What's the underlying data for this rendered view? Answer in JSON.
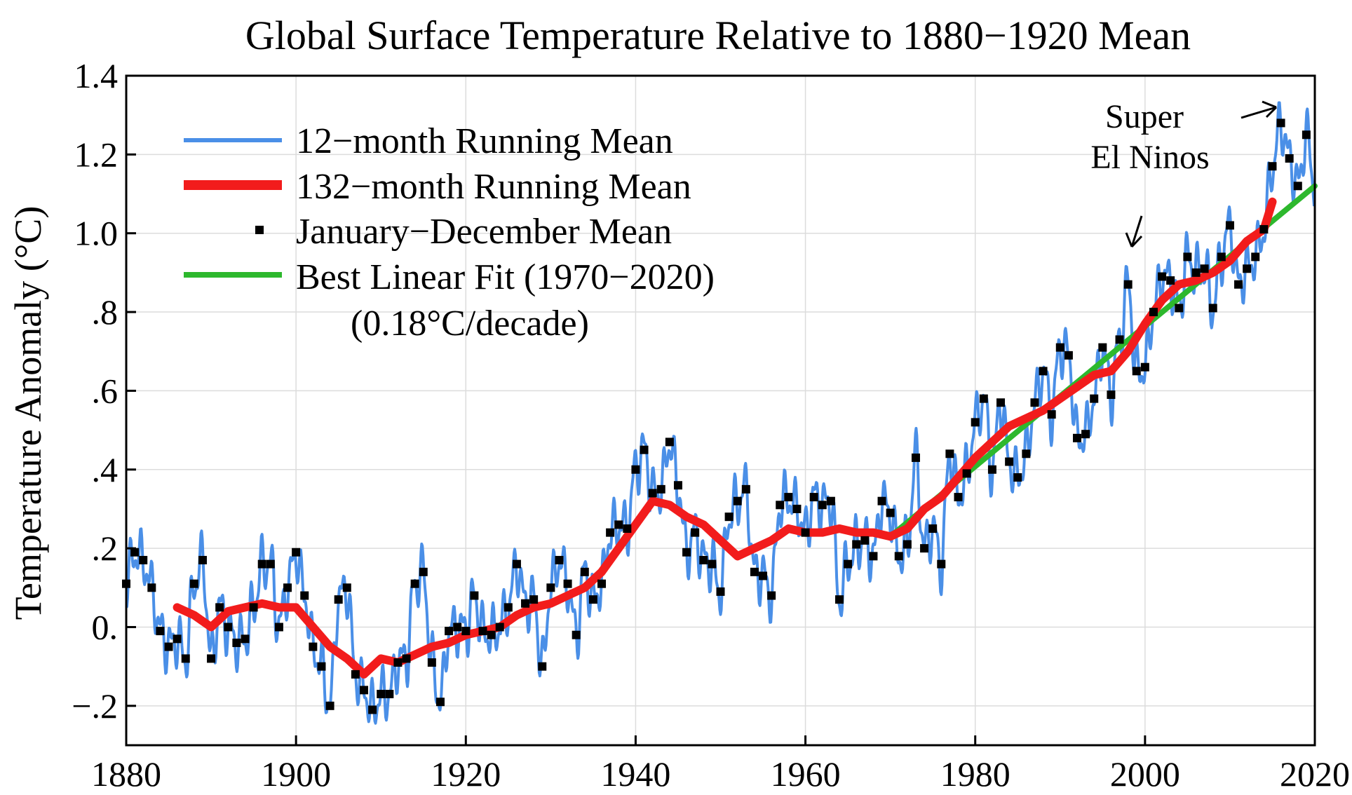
{
  "chart_data": {
    "type": "line",
    "title": "Global Surface Temperature Relative to 1880−1920 Mean",
    "xlabel": "",
    "ylabel": "Temperature Anomaly (°C)",
    "xlim": [
      1880,
      2020
    ],
    "ylim": [
      -0.3,
      1.4
    ],
    "x_ticks": [
      1880,
      1900,
      1920,
      1940,
      1960,
      1980,
      2000,
      2020
    ],
    "x_tick_labels": [
      "1880",
      "1900",
      "1920",
      "1940",
      "1960",
      "1980",
      "2000",
      "2020"
    ],
    "y_ticks": [
      -0.2,
      0.0,
      0.2,
      0.4,
      0.6,
      0.8,
      1.0,
      1.2,
      1.4
    ],
    "y_tick_labels": [
      "−.2",
      "0.",
      ".2",
      ".4",
      ".6",
      ".8",
      "1.0",
      "1.2",
      "1.4"
    ],
    "grid": true,
    "legend_position": "top-left",
    "legend": {
      "running12": "12−month Running Mean",
      "running132": "132−month Running Mean",
      "annual": "January−December Mean",
      "fit": "Best Linear Fit (1970−2020)",
      "fit_note": "(0.18°C/decade)"
    },
    "annotations": {
      "line1": "Super",
      "line2": "El Ninos"
    },
    "colors": {
      "running12": "#4a8fe7",
      "running132": "#f21c1c",
      "annual": "#000000",
      "fit": "#2db82d"
    },
    "series": {
      "annual": {
        "x": [
          1880,
          1881,
          1882,
          1883,
          1884,
          1885,
          1886,
          1887,
          1888,
          1889,
          1890,
          1891,
          1892,
          1893,
          1894,
          1895,
          1896,
          1897,
          1898,
          1899,
          1900,
          1901,
          1902,
          1903,
          1904,
          1905,
          1906,
          1907,
          1908,
          1909,
          1910,
          1911,
          1912,
          1913,
          1914,
          1915,
          1916,
          1917,
          1918,
          1919,
          1920,
          1921,
          1922,
          1923,
          1924,
          1925,
          1926,
          1927,
          1928,
          1929,
          1930,
          1931,
          1932,
          1933,
          1934,
          1935,
          1936,
          1937,
          1938,
          1939,
          1940,
          1941,
          1942,
          1943,
          1944,
          1945,
          1946,
          1947,
          1948,
          1949,
          1950,
          1951,
          1952,
          1953,
          1954,
          1955,
          1956,
          1957,
          1958,
          1959,
          1960,
          1961,
          1962,
          1963,
          1964,
          1965,
          1966,
          1967,
          1968,
          1969,
          1970,
          1971,
          1972,
          1973,
          1974,
          1975,
          1976,
          1977,
          1978,
          1979,
          1980,
          1981,
          1982,
          1983,
          1984,
          1985,
          1986,
          1987,
          1988,
          1989,
          1990,
          1991,
          1992,
          1993,
          1994,
          1995,
          1996,
          1997,
          1998,
          1999,
          2000,
          2001,
          2002,
          2003,
          2004,
          2005,
          2006,
          2007,
          2008,
          2009,
          2010,
          2011,
          2012,
          2013,
          2014,
          2015,
          2016,
          2017,
          2018,
          2019
        ],
        "y": [
          0.11,
          0.19,
          0.17,
          0.1,
          -0.01,
          -0.05,
          -0.03,
          -0.08,
          0.11,
          0.17,
          -0.08,
          0.05,
          0.0,
          -0.04,
          -0.03,
          0.05,
          0.16,
          0.16,
          0.0,
          0.1,
          0.19,
          0.08,
          -0.05,
          -0.1,
          -0.2,
          0.07,
          0.1,
          -0.12,
          -0.16,
          -0.21,
          -0.17,
          -0.17,
          -0.09,
          -0.08,
          0.11,
          0.14,
          -0.09,
          -0.19,
          -0.01,
          0.0,
          -0.01,
          0.08,
          -0.01,
          -0.02,
          0.0,
          0.05,
          0.16,
          0.06,
          0.07,
          -0.1,
          0.1,
          0.17,
          0.11,
          -0.02,
          0.14,
          0.07,
          0.11,
          0.24,
          0.26,
          0.25,
          0.4,
          0.45,
          0.34,
          0.35,
          0.47,
          0.36,
          0.19,
          0.24,
          0.17,
          0.16,
          0.09,
          0.28,
          0.32,
          0.35,
          0.14,
          0.13,
          0.08,
          0.31,
          0.33,
          0.3,
          0.24,
          0.33,
          0.31,
          0.32,
          0.07,
          0.16,
          0.21,
          0.22,
          0.18,
          0.32,
          0.29,
          0.18,
          0.21,
          0.43,
          0.2,
          0.25,
          0.16,
          0.44,
          0.33,
          0.39,
          0.52,
          0.58,
          0.4,
          0.57,
          0.42,
          0.38,
          0.44,
          0.57,
          0.65,
          0.54,
          0.71,
          0.69,
          0.48,
          0.49,
          0.58,
          0.71,
          0.59,
          0.73,
          0.87,
          0.65,
          0.66,
          0.8,
          0.89,
          0.88,
          0.81,
          0.94,
          0.9,
          0.91,
          0.81,
          0.94,
          1.02,
          0.87,
          0.91,
          0.94,
          1.01,
          1.17,
          1.28,
          1.19,
          1.12,
          1.25
        ]
      },
      "running132": {
        "x": [
          1886,
          1888,
          1890,
          1892,
          1894,
          1896,
          1898,
          1900,
          1902,
          1904,
          1906,
          1908,
          1910,
          1912,
          1914,
          1916,
          1918,
          1920,
          1922,
          1924,
          1926,
          1928,
          1930,
          1932,
          1934,
          1936,
          1938,
          1940,
          1942,
          1944,
          1946,
          1948,
          1950,
          1952,
          1954,
          1956,
          1958,
          1960,
          1962,
          1964,
          1966,
          1968,
          1970,
          1972,
          1974,
          1976,
          1978,
          1980,
          1982,
          1984,
          1986,
          1988,
          1990,
          1992,
          1994,
          1996,
          1998,
          2000,
          2002,
          2004,
          2006,
          2008,
          2010,
          2012,
          2014,
          2015
        ],
        "y": [
          0.05,
          0.03,
          0.0,
          0.04,
          0.05,
          0.06,
          0.05,
          0.05,
          0.0,
          -0.05,
          -0.08,
          -0.12,
          -0.08,
          -0.09,
          -0.07,
          -0.05,
          -0.04,
          -0.02,
          -0.01,
          0.0,
          0.03,
          0.05,
          0.06,
          0.08,
          0.1,
          0.14,
          0.2,
          0.26,
          0.32,
          0.31,
          0.28,
          0.26,
          0.22,
          0.18,
          0.2,
          0.22,
          0.25,
          0.24,
          0.24,
          0.25,
          0.24,
          0.24,
          0.23,
          0.25,
          0.3,
          0.33,
          0.38,
          0.43,
          0.47,
          0.51,
          0.53,
          0.55,
          0.58,
          0.61,
          0.64,
          0.65,
          0.7,
          0.77,
          0.83,
          0.87,
          0.88,
          0.9,
          0.93,
          0.98,
          1.01,
          1.08
        ]
      },
      "fit": {
        "x": [
          1970,
          2020
        ],
        "y": [
          0.23,
          1.12
        ]
      }
    }
  }
}
